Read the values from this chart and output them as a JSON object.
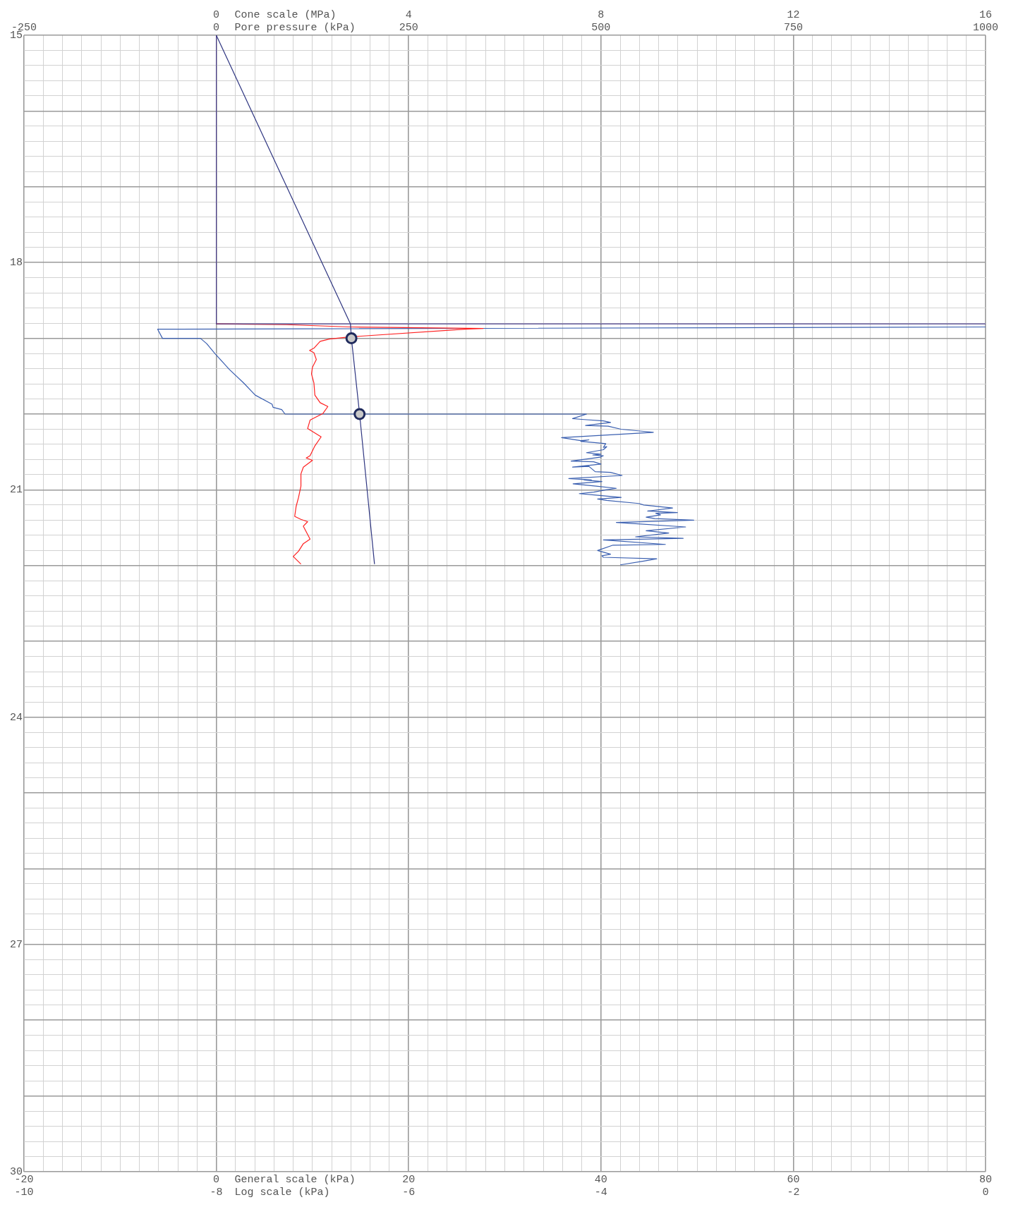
{
  "chart_data": {
    "type": "line",
    "xlabel": "General scale (kPa)",
    "x2label": "Cone scale (MPa)",
    "annotations": [
      "Pore pressure (kPa)",
      "-250",
      "0",
      "250",
      "500",
      "750",
      "1000",
      "Log scale (kPa)",
      "-10",
      "-8",
      "-6",
      "-4",
      "-2",
      "0"
    ],
    "xlim": [
      -20,
      80
    ],
    "xticks": [
      -20,
      {
        "value": -18,
        "label": null
      },
      {
        "value": -16,
        "label": null
      },
      {
        "value": -14,
        "label": null
      },
      {
        "value": -12,
        "label": null
      },
      {
        "value": -10,
        "label": null
      },
      {
        "value": -8,
        "label": null
      },
      {
        "value": -6,
        "label": null
      },
      {
        "value": -4,
        "label": null
      },
      {
        "value": -2,
        "label": null
      },
      0,
      {
        "value": 2,
        "label": null
      },
      {
        "value": 4,
        "label": null
      },
      {
        "value": 6,
        "label": null
      },
      {
        "value": 8,
        "label": null
      },
      {
        "value": 10,
        "label": null
      },
      {
        "value": 12,
        "label": null
      },
      {
        "value": 14,
        "label": null
      },
      {
        "value": 16,
        "label": null
      },
      {
        "value": 18,
        "label": null
      },
      20,
      {
        "value": 22,
        "label": null
      },
      {
        "value": 24,
        "label": null
      },
      {
        "value": 26,
        "label": null
      },
      {
        "value": 28,
        "label": null
      },
      {
        "value": 30,
        "label": null
      },
      {
        "value": 32,
        "label": null
      },
      {
        "value": 34,
        "label": null
      },
      {
        "value": 36,
        "label": null
      },
      {
        "value": 38,
        "label": null
      },
      40,
      {
        "value": 42,
        "label": null
      },
      {
        "value": 44,
        "label": null
      },
      {
        "value": 46,
        "label": null
      },
      {
        "value": 48,
        "label": null
      },
      {
        "value": 50,
        "label": null
      },
      {
        "value": 52,
        "label": null
      },
      {
        "value": 54,
        "label": null
      },
      {
        "value": 56,
        "label": null
      },
      {
        "value": 58,
        "label": null
      },
      60,
      {
        "value": 62,
        "label": null
      },
      {
        "value": 64,
        "label": null
      },
      {
        "value": 66,
        "label": null
      },
      {
        "value": 68,
        "label": null
      },
      {
        "value": 70,
        "label": null
      },
      {
        "value": 72,
        "label": null
      },
      {
        "value": 74,
        "label": null
      },
      {
        "value": 76,
        "label": null
      },
      {
        "value": 78,
        "label": null
      },
      80
    ],
    "x2lim": [
      -4,
      16
    ],
    "x2ticks": [
      {
        "value": -4,
        "label": null
      },
      0,
      4,
      8,
      12,
      16
    ],
    "ylim": [
      30,
      15
    ],
    "yticks": [
      15,
      {
        "value": 15.2,
        "label": null
      },
      {
        "value": 15.4,
        "label": null
      },
      {
        "value": 15.6,
        "label": null
      },
      {
        "value": 15.8,
        "label": null
      },
      {
        "value": 16,
        "label": null
      },
      {
        "value": 16.2,
        "label": null
      },
      {
        "value": 16.4,
        "label": null
      },
      {
        "value": 16.6,
        "label": null
      },
      {
        "value": 16.8,
        "label": null
      },
      {
        "value": 17,
        "label": null
      },
      {
        "value": 17.2,
        "label": null
      },
      {
        "value": 17.4,
        "label": null
      },
      {
        "value": 17.6,
        "label": null
      },
      {
        "value": 17.8,
        "label": null
      },
      18,
      {
        "value": 18.2,
        "label": null
      },
      {
        "value": 18.4,
        "label": null
      },
      {
        "value": 18.6,
        "label": null
      },
      {
        "value": 18.8,
        "label": null
      },
      {
        "value": 19,
        "label": null
      },
      {
        "value": 19.2,
        "label": null
      },
      {
        "value": 19.4,
        "label": null
      },
      {
        "value": 19.6,
        "label": null
      },
      {
        "value": 19.8,
        "label": null
      },
      {
        "value": 20,
        "label": null
      },
      {
        "value": 20.2,
        "label": null
      },
      {
        "value": 20.4,
        "label": null
      },
      {
        "value": 20.6,
        "label": null
      },
      {
        "value": 20.8,
        "label": null
      },
      21,
      {
        "value": 21.2,
        "label": null
      },
      {
        "value": 21.4,
        "label": null
      },
      {
        "value": 21.6,
        "label": null
      },
      {
        "value": 21.8,
        "label": null
      },
      {
        "value": 22,
        "label": null
      },
      {
        "value": 22.2,
        "label": null
      },
      {
        "value": 22.4,
        "label": null
      },
      {
        "value": 22.6,
        "label": null
      },
      {
        "value": 22.8,
        "label": null
      },
      {
        "value": 23,
        "label": null
      },
      {
        "value": 23.2,
        "label": null
      },
      {
        "value": 23.4,
        "label": null
      },
      {
        "value": 23.6,
        "label": null
      },
      {
        "value": 23.8,
        "label": null
      },
      24,
      {
        "value": 24.2,
        "label": null
      },
      {
        "value": 24.4,
        "label": null
      },
      {
        "value": 24.6,
        "label": null
      },
      {
        "value": 24.8,
        "label": null
      },
      {
        "value": 25,
        "label": null
      },
      {
        "value": 25.2,
        "label": null
      },
      {
        "value": 25.4,
        "label": null
      },
      {
        "value": 25.6,
        "label": null
      },
      {
        "value": 25.8,
        "label": null
      },
      {
        "value": 26,
        "label": null
      },
      {
        "value": 26.2,
        "label": null
      },
      {
        "value": 26.4,
        "label": null
      },
      {
        "value": 26.6,
        "label": null
      },
      {
        "value": 26.8,
        "label": null
      },
      27,
      {
        "value": 27.2,
        "label": null
      },
      {
        "value": 27.4,
        "label": null
      },
      {
        "value": 27.6,
        "label": null
      },
      {
        "value": 27.8,
        "label": null
      },
      {
        "value": 28,
        "label": null
      },
      {
        "value": 28.2,
        "label": null
      },
      {
        "value": 28.4,
        "label": null
      },
      {
        "value": 28.6,
        "label": null
      },
      {
        "value": 28.8,
        "label": null
      },
      {
        "value": 29,
        "label": null
      },
      {
        "value": 29.2,
        "label": null
      },
      {
        "value": 29.4,
        "label": null
      },
      {
        "value": 29.6,
        "label": null
      },
      {
        "value": 29.8,
        "label": null
      },
      30
    ],
    "grid": true,
    "legend": false,
    "marker": "none",
    "series": [
      {
        "type": "line",
        "axis": "x2",
        "color": "#4b3f8c",
        "x": [
          0,
          0,
          16
        ],
        "values": [
          15,
          18.81,
          18.81
        ]
      },
      {
        "type": "line",
        "axis": "x2",
        "color": "#2e3580",
        "x": [
          0,
          2.79,
          2.81,
          2.98,
          3.29
        ],
        "values": [
          15,
          18.81,
          19.0,
          20.0,
          21.98
        ]
      },
      {
        "type": "line",
        "axis": "x2",
        "color": "#ff2020",
        "x": [
          0,
          1.46,
          2.8,
          5.55,
          5.17,
          2.8,
          2.35,
          2.16,
          2.03,
          1.94,
          2.03,
          2.08,
          2,
          1.98,
          2.03,
          2.05,
          2.16,
          2.32,
          2.22,
          1.95,
          1.9,
          2.18,
          2.05,
          1.95,
          1.87,
          2,
          1.81,
          1.76,
          1.76,
          1.71,
          1.66,
          1.63,
          1.76,
          1.9,
          1.81,
          1.95,
          1.81,
          1.71,
          1.6,
          1.76
        ],
        "values": [
          18.81,
          18.82,
          18.85,
          18.87,
          18.88,
          18.98,
          19.01,
          19.04,
          19.13,
          19.16,
          19.19,
          19.28,
          19.38,
          19.47,
          19.59,
          19.75,
          19.85,
          19.9,
          19.99,
          20.08,
          20.19,
          20.3,
          20.42,
          20.55,
          20.58,
          20.61,
          20.7,
          20.79,
          20.95,
          21.1,
          21.22,
          21.35,
          21.39,
          21.42,
          21.48,
          21.65,
          21.71,
          21.81,
          21.88,
          21.98
        ]
      },
      {
        "type": "line",
        "axis": "x2",
        "color": "#3a5fb0",
        "x": [
          16,
          -1.22,
          -1.12,
          -0.33,
          -0.2,
          -0.03,
          0.27,
          0.57,
          0.81,
          1.16,
          1.18,
          1.36,
          1.43,
          7.7,
          7.41,
          7.6,
          8.05,
          8.2,
          7.68,
          8.15,
          8.42,
          9.09,
          7.18,
          7.58,
          7.75,
          7.58,
          8.1,
          8.05,
          8.12,
          8.05,
          7.7,
          8.0,
          7.83,
          8.05,
          7.98,
          7.38,
          7.85,
          8.0,
          7.41,
          7.75,
          7.88,
          8.2,
          8.44,
          7.33,
          7.8,
          7.65,
          8.02,
          7.42,
          7.9,
          8.32,
          8.1,
          7.85,
          7.55,
          7.9,
          8.42,
          7.93,
          8.12,
          8.79,
          8.89,
          9.49,
          8.97,
          9.59,
          9.14,
          9.24,
          8.94,
          9.12,
          9.93,
          8.32,
          8.55,
          9.76,
          8.94,
          9.41,
          8.72,
          9.71,
          8.05,
          9.34,
          8.25,
          7.93,
          8.2,
          8.02,
          8.05,
          9.16,
          8.89,
          8.4
        ],
        "values": [
          18.85,
          18.88,
          19.0,
          19.0,
          19.07,
          19.2,
          19.41,
          19.59,
          19.75,
          19.87,
          19.91,
          19.94,
          20.0,
          20.0,
          20.06,
          20.07,
          20.09,
          20.11,
          20.15,
          20.16,
          20.2,
          20.24,
          20.31,
          20.35,
          20.34,
          20.36,
          20.39,
          20.44,
          20.43,
          20.47,
          20.51,
          20.53,
          20.54,
          20.55,
          20.57,
          20.62,
          20.63,
          20.66,
          20.7,
          20.69,
          20.76,
          20.77,
          20.81,
          20.85,
          20.87,
          20.87,
          20.89,
          20.92,
          20.95,
          20.98,
          21.0,
          21.03,
          21.05,
          21.07,
          21.1,
          21.12,
          21.14,
          21.18,
          21.2,
          21.24,
          21.28,
          21.3,
          21.31,
          21.33,
          21.36,
          21.38,
          21.4,
          21.43,
          21.44,
          21.49,
          21.54,
          21.57,
          21.62,
          21.64,
          21.66,
          21.72,
          21.73,
          21.8,
          21.85,
          21.87,
          21.89,
          21.91,
          21.94,
          21.99
        ]
      },
      {
        "type": "scatter",
        "axis": "x2",
        "marker": "circle",
        "color": "#1f2a5c",
        "x": [
          2.81,
          2.98
        ],
        "values": [
          19.0,
          20.0
        ]
      }
    ]
  }
}
